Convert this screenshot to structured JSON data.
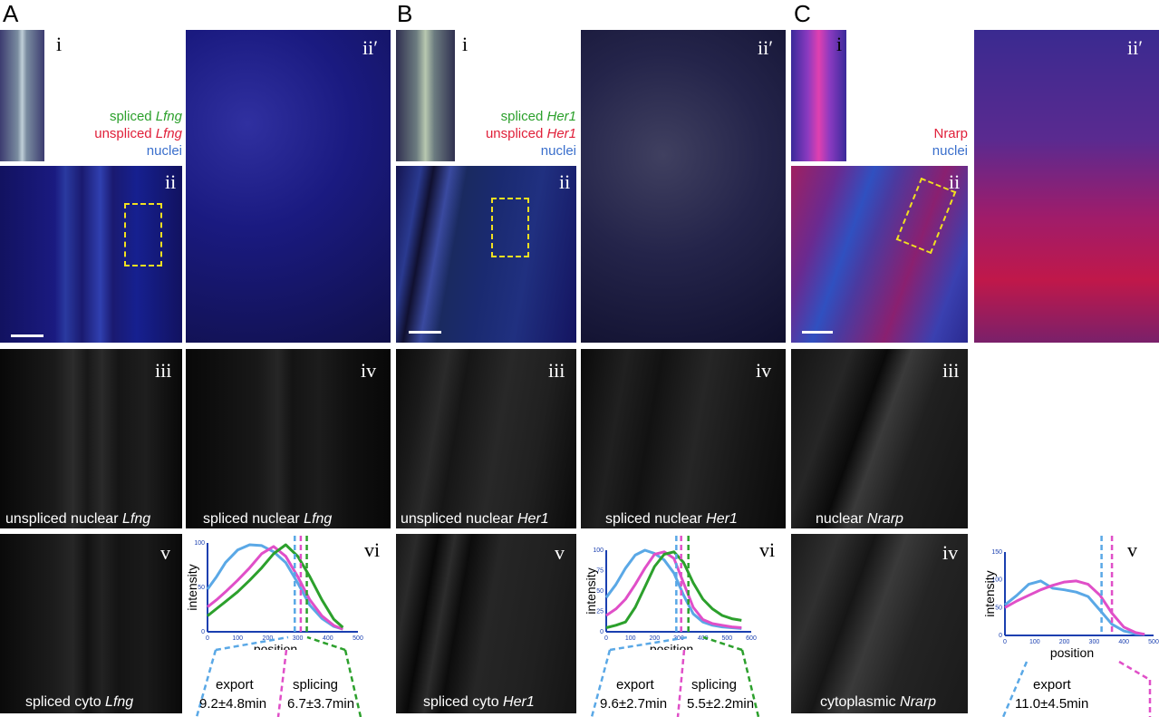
{
  "panels": [
    {
      "letter": "A",
      "legend": {
        "spliced": "spliced ",
        "spliced_gene": "Lfng",
        "unspliced": "unspliced ",
        "unspliced_gene": "Lfng",
        "nuclei": "nuclei"
      },
      "labels": {
        "i": "i",
        "ii": "ii",
        "ii_prime": "ii′",
        "iii": "iii",
        "iv": "iv",
        "v": "v",
        "vi": "vi"
      },
      "captions": {
        "iii_text": "unspliced nuclear ",
        "iii_gene": "Lfng",
        "iv_text": "spliced nuclear ",
        "iv_gene": "Lfng",
        "v_text": "spliced cyto ",
        "v_gene": "Lfng"
      },
      "annotations": {
        "export_label": "export",
        "export_value": "9.2±4.8min",
        "splicing_label": "splicing",
        "splicing_value": "6.7±3.7min"
      }
    },
    {
      "letter": "B",
      "legend": {
        "spliced": "spliced ",
        "spliced_gene": "Her1",
        "unspliced": "unspliced ",
        "unspliced_gene": "Her1",
        "nuclei": "nuclei"
      },
      "labels": {
        "i": "i",
        "ii": "ii",
        "ii_prime": "ii′",
        "iii": "iii",
        "iv": "iv",
        "v": "v",
        "vi": "vi"
      },
      "captions": {
        "iii_text": "unspliced nuclear ",
        "iii_gene": "Her1",
        "iv_text": "spliced nuclear ",
        "iv_gene": "Her1",
        "v_text": "spliced cyto ",
        "v_gene": "Her1"
      },
      "annotations": {
        "export_label": "export",
        "export_value": "9.6±2.7min",
        "splicing_label": "splicing",
        "splicing_value": "5.5±2.2min"
      }
    },
    {
      "letter": "C",
      "legend": {
        "protein": "Nrarp",
        "nuclei": "nuclei"
      },
      "labels": {
        "i": "i",
        "ii": "ii",
        "ii_prime": "ii′",
        "iii": "iii",
        "iv": "iv",
        "v": "v"
      },
      "captions": {
        "iii_text": "nuclear ",
        "iii_gene": "Nrarp",
        "iv_text": "cytoplasmic ",
        "iv_gene": "Nrarp"
      },
      "annotations": {
        "export_label": "export",
        "export_value": "11.0±4.5min"
      }
    }
  ],
  "colors": {
    "green": "#2ca02c",
    "magenta": "#e04fc8",
    "light_blue": "#5aa8e6",
    "axis": "#1a3fb0"
  },
  "chart_data": [
    {
      "type": "line",
      "panel": "A-vi",
      "xlabel": "position",
      "ylabel": "intensity",
      "xlim": [
        0,
        500
      ],
      "ylim": [
        0,
        100
      ],
      "xticks": [
        "0",
        "100",
        "200",
        "300",
        "400",
        "500"
      ],
      "yticks": [
        "0",
        "50",
        "100"
      ],
      "series": [
        {
          "color": "#5aa8e6",
          "x": [
            0,
            30,
            60,
            100,
            140,
            180,
            220,
            260,
            300,
            340,
            380,
            420,
            450
          ],
          "y": [
            48,
            62,
            78,
            92,
            98,
            97,
            90,
            78,
            55,
            30,
            15,
            6,
            3
          ]
        },
        {
          "color": "#e04fc8",
          "x": [
            0,
            30,
            60,
            100,
            140,
            180,
            220,
            260,
            300,
            340,
            380,
            420,
            450
          ],
          "y": [
            28,
            36,
            45,
            58,
            72,
            88,
            96,
            85,
            62,
            36,
            18,
            7,
            3
          ]
        },
        {
          "color": "#2ca02c",
          "x": [
            0,
            30,
            60,
            100,
            140,
            180,
            220,
            260,
            300,
            340,
            380,
            420,
            450
          ],
          "y": [
            18,
            26,
            34,
            45,
            58,
            72,
            88,
            98,
            85,
            62,
            36,
            14,
            5
          ]
        }
      ],
      "vlines": [
        {
          "color": "#5aa8e6",
          "x": 290
        },
        {
          "color": "#e04fc8",
          "x": 310
        },
        {
          "color": "#2ca02c",
          "x": 330
        }
      ]
    },
    {
      "type": "line",
      "panel": "B-vi",
      "xlabel": "position",
      "ylabel": "intensity",
      "xlim": [
        0,
        600
      ],
      "ylim": [
        0,
        100
      ],
      "xticks": [
        "0",
        "100",
        "200",
        "300",
        "400",
        "500",
        "600"
      ],
      "yticks": [
        "0",
        "25",
        "50",
        "75",
        "100"
      ],
      "series": [
        {
          "color": "#5aa8e6",
          "x": [
            0,
            40,
            80,
            120,
            160,
            200,
            240,
            280,
            320,
            360,
            400,
            440,
            480,
            520,
            560
          ],
          "y": [
            42,
            58,
            78,
            94,
            100,
            96,
            88,
            72,
            45,
            22,
            12,
            8,
            6,
            5,
            4
          ]
        },
        {
          "color": "#e04fc8",
          "x": [
            0,
            40,
            80,
            120,
            160,
            200,
            240,
            280,
            320,
            360,
            400,
            440,
            480,
            520,
            560
          ],
          "y": [
            20,
            28,
            40,
            58,
            78,
            95,
            98,
            90,
            60,
            30,
            15,
            10,
            8,
            6,
            5
          ]
        },
        {
          "color": "#2ca02c",
          "x": [
            0,
            40,
            80,
            120,
            160,
            200,
            240,
            280,
            320,
            360,
            400,
            440,
            480,
            520,
            560
          ],
          "y": [
            5,
            8,
            12,
            30,
            55,
            80,
            95,
            98,
            85,
            60,
            40,
            28,
            20,
            16,
            14
          ]
        }
      ],
      "vlines": [
        {
          "color": "#5aa8e6",
          "x": 290
        },
        {
          "color": "#e04fc8",
          "x": 310
        },
        {
          "color": "#2ca02c",
          "x": 340
        }
      ]
    },
    {
      "type": "line",
      "panel": "C-v",
      "xlabel": "position",
      "ylabel": "intensity",
      "xlim": [
        0,
        500
      ],
      "ylim": [
        0,
        150
      ],
      "xticks": [
        "0",
        "100",
        "200",
        "300",
        "400",
        "500"
      ],
      "yticks": [
        "0",
        "50",
        "100",
        "150"
      ],
      "series": [
        {
          "color": "#5aa8e6",
          "x": [
            0,
            40,
            80,
            120,
            160,
            200,
            240,
            280,
            320,
            360,
            400,
            440,
            470
          ],
          "y": [
            55,
            72,
            92,
            98,
            85,
            82,
            78,
            70,
            45,
            20,
            8,
            3,
            2
          ]
        },
        {
          "color": "#e04fc8",
          "x": [
            0,
            40,
            80,
            120,
            160,
            200,
            240,
            280,
            320,
            360,
            400,
            440,
            470
          ],
          "y": [
            50,
            62,
            72,
            82,
            90,
            96,
            98,
            92,
            72,
            40,
            15,
            5,
            2
          ]
        }
      ],
      "vlines": [
        {
          "color": "#5aa8e6",
          "x": 325
        },
        {
          "color": "#e04fc8",
          "x": 360
        }
      ]
    }
  ]
}
